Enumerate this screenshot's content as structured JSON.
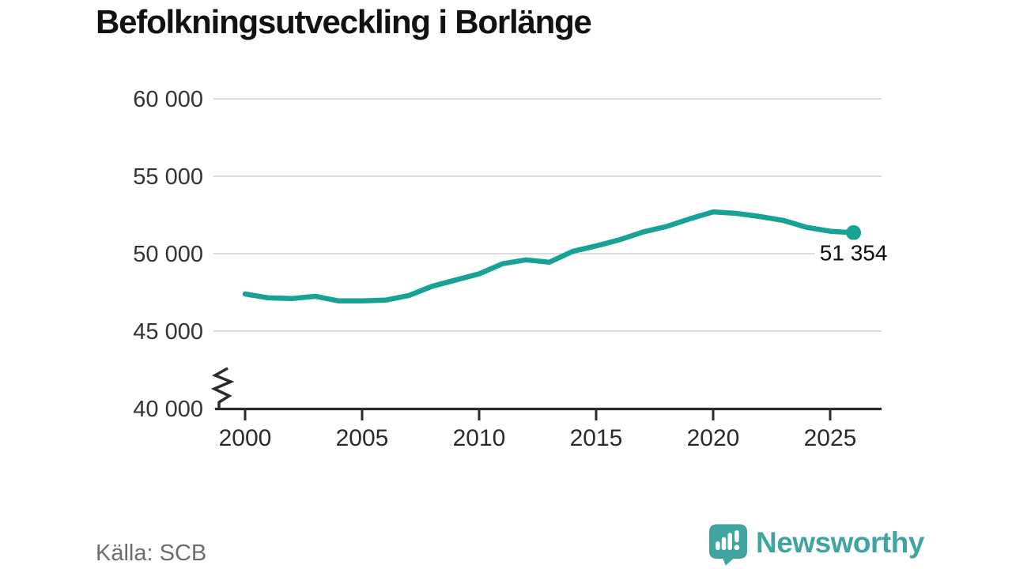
{
  "title": "Befolkningsutveckling i Borlänge",
  "source": "Källa: SCB",
  "branding": {
    "name": "Newsworthy",
    "icon": "newsworthy-speech-bubble-bar-chart-icon",
    "color": "#40a4a0"
  },
  "chart_data": {
    "type": "line",
    "title": "Befolkningsutveckling i Borlänge",
    "series_name": "Befolkning",
    "x": [
      2000,
      2001,
      2002,
      2003,
      2004,
      2005,
      2006,
      2007,
      2008,
      2009,
      2010,
      2011,
      2012,
      2013,
      2014,
      2015,
      2016,
      2017,
      2018,
      2019,
      2020,
      2021,
      2022,
      2023,
      2024,
      2025,
      2026
    ],
    "values": [
      47400,
      47150,
      47100,
      47250,
      46950,
      46950,
      47000,
      47300,
      47900,
      48300,
      48700,
      49350,
      49600,
      49450,
      50150,
      50500,
      50900,
      51400,
      51750,
      52250,
      52700,
      52600,
      52400,
      52150,
      51700,
      51450,
      51354
    ],
    "end_value": 51354,
    "end_label": "51 354",
    "yticks": [
      40000,
      45000,
      50000,
      55000,
      60000
    ],
    "ytick_labels": [
      "40 000",
      "45 000",
      "50 000",
      "55 000",
      "60 000"
    ],
    "xticks": [
      2000,
      2005,
      2010,
      2015,
      2020,
      2025
    ],
    "xtick_labels": [
      "2000",
      "2005",
      "2010",
      "2015",
      "2020",
      "2025"
    ],
    "ylim": [
      40000,
      61000
    ],
    "xlim": [
      1998.6,
      2027.2
    ],
    "axis_break_at_bottom": true,
    "grid": "horizontal",
    "legend": "none",
    "line_color": "#17a295",
    "grid_color": "#dcdcdc",
    "axis_color": "#2b2b2e",
    "tick_label_color": "#333338",
    "annotation_color": "#0f0f0f",
    "source": "Källa: SCB"
  }
}
